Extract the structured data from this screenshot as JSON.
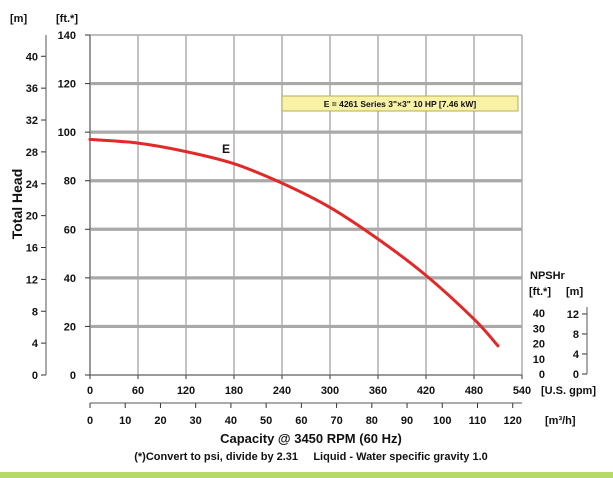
{
  "colors": {
    "curve": "#e02a2a",
    "grid": "#a9a9a9",
    "legend_bg": "#f8f1a6",
    "legend_border": "#b5ad5a",
    "bottom_bar": "#b6d96a"
  },
  "chart_data": {
    "type": "line",
    "curve_label": "E",
    "legend": "E = 4261 Series 3\"×3\" 10 HP [7.46 kW]",
    "series": [
      {
        "name": "E",
        "x": [
          0,
          60,
          120,
          180,
          240,
          300,
          360,
          420,
          480,
          510
        ],
        "y": [
          97,
          95.5,
          92,
          87,
          79,
          69,
          56,
          41,
          23,
          12
        ]
      }
    ],
    "x_axis": {
      "label": "Capacity @ 3450 RPM (60 Hz)",
      "unit_gpm": "[U.S. gpm]",
      "ticks_gpm": [
        "0",
        "60",
        "120",
        "180",
        "240",
        "300",
        "360",
        "420",
        "480",
        "540"
      ],
      "unit_m3h": "[m³/h]",
      "ticks_m3h": [
        "0",
        "10",
        "20",
        "30",
        "40",
        "50",
        "60",
        "70",
        "80",
        "90",
        "100",
        "110",
        "120"
      ],
      "xlim": [
        0,
        540
      ]
    },
    "y_axis": {
      "label": "Total Head",
      "unit_m": "[m]",
      "unit_ft": "[ft.*]",
      "ticks_m": [
        "0",
        "4",
        "8",
        "12",
        "16",
        "20",
        "24",
        "28",
        "32",
        "36",
        "40"
      ],
      "ticks_ft": [
        "0",
        "20",
        "40",
        "60",
        "80",
        "100",
        "120",
        "140"
      ],
      "ylim": [
        0,
        140
      ]
    },
    "npshr_axis": {
      "label": "NPSHr",
      "unit_ft": "[ft.*]",
      "unit_m": "[m]",
      "ticks_ft": [
        "0",
        "10",
        "20",
        "30",
        "40"
      ],
      "ticks_m": [
        "0",
        "4",
        "8",
        "12"
      ]
    },
    "grid": true,
    "footnote": "(*)Convert to psi, divide by 2.31     Liquid - Water specific gravity 1.0"
  }
}
